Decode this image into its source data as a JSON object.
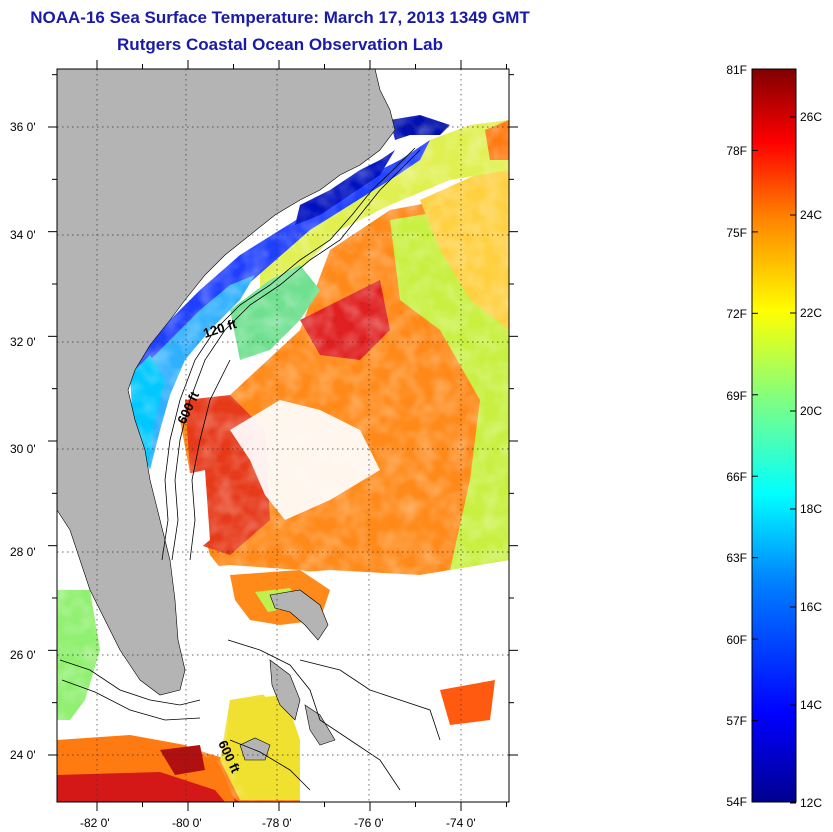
{
  "header": {
    "title": "NOAA-16 Sea Surface Temperature:  March 17, 2013 1349 GMT",
    "subtitle": "Rutgers Coastal Ocean Observation Lab"
  },
  "map": {
    "lat_labels": [
      "36 0'",
      "34 0'",
      "32 0'",
      "30 0'",
      "28 0'",
      "26 0'",
      "24 0'"
    ],
    "lon_labels": [
      "-82 0'",
      "-80 0'",
      "-78 0'",
      "-76 0'",
      "-74 0'"
    ],
    "contour_labels": [
      "120 ft",
      "600 ft",
      "600 ft"
    ]
  },
  "colorbar": {
    "fahrenheit_labels": [
      "81F",
      "78F",
      "75F",
      "72F",
      "69F",
      "66F",
      "63F",
      "60F",
      "57F",
      "54F"
    ],
    "celsius_labels": [
      "26C",
      "24C",
      "22C",
      "20C",
      "18C",
      "16C",
      "14C",
      "12C"
    ],
    "colormap": [
      "#00008f",
      "#0000ff",
      "#0080ff",
      "#00ffff",
      "#80ff80",
      "#ffff00",
      "#ff8000",
      "#ff0000",
      "#800000"
    ]
  }
}
